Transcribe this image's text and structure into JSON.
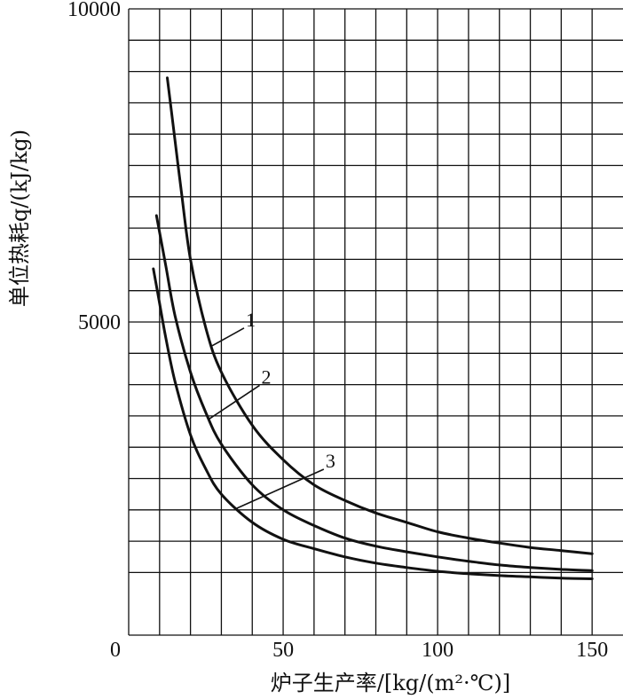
{
  "chart_data": {
    "type": "line",
    "xlabel": "炉子生产率/[kg/(m²·℃)]",
    "ylabel": "单位热耗q/(kJ/kg)",
    "xlim": [
      0,
      160
    ],
    "ylim": [
      0,
      10000
    ],
    "x_ticks": [
      0,
      50,
      100,
      150
    ],
    "y_ticks": [
      5000,
      10000
    ],
    "x_gridlines": [
      10,
      20,
      30,
      40,
      50,
      60,
      70,
      80,
      90,
      100,
      110,
      120,
      130,
      140,
      150
    ],
    "y_gridlines": [
      1000,
      1500,
      2000,
      2500,
      3000,
      3500,
      4000,
      4500,
      5000,
      5500,
      6000,
      6500,
      7000,
      7500,
      8000,
      8500,
      9000,
      9500,
      10000
    ],
    "grid": true,
    "series": [
      {
        "name": "1",
        "x": [
          12.5,
          15,
          17,
          20,
          25,
          30,
          40,
          50,
          60,
          70,
          80,
          90,
          100,
          110,
          120,
          130,
          140,
          150
        ],
        "y": [
          8900,
          7900,
          7100,
          6000,
          4900,
          4200,
          3350,
          2800,
          2400,
          2150,
          1950,
          1800,
          1650,
          1550,
          1470,
          1400,
          1350,
          1300
        ]
      },
      {
        "name": "2",
        "x": [
          9,
          12,
          15,
          20,
          25,
          30,
          40,
          50,
          60,
          70,
          80,
          90,
          100,
          110,
          120,
          130,
          140,
          150
        ],
        "y": [
          6700,
          5900,
          5100,
          4200,
          3550,
          3050,
          2400,
          2000,
          1750,
          1550,
          1420,
          1330,
          1250,
          1180,
          1120,
          1080,
          1050,
          1030
        ]
      },
      {
        "name": "3",
        "x": [
          8,
          10,
          12,
          15,
          20,
          25,
          30,
          40,
          50,
          60,
          70,
          80,
          90,
          100,
          110,
          120,
          130,
          140,
          150
        ],
        "y": [
          5850,
          5300,
          4750,
          4050,
          3200,
          2650,
          2250,
          1800,
          1530,
          1380,
          1250,
          1150,
          1080,
          1020,
          980,
          950,
          930,
          910,
          900
        ]
      }
    ],
    "annotations": [
      {
        "label": "1",
        "series": "1",
        "at_x": 27
      },
      {
        "label": "2",
        "series": "2",
        "at_x": 26
      },
      {
        "label": "3",
        "series": "3",
        "at_x": 35
      }
    ]
  }
}
